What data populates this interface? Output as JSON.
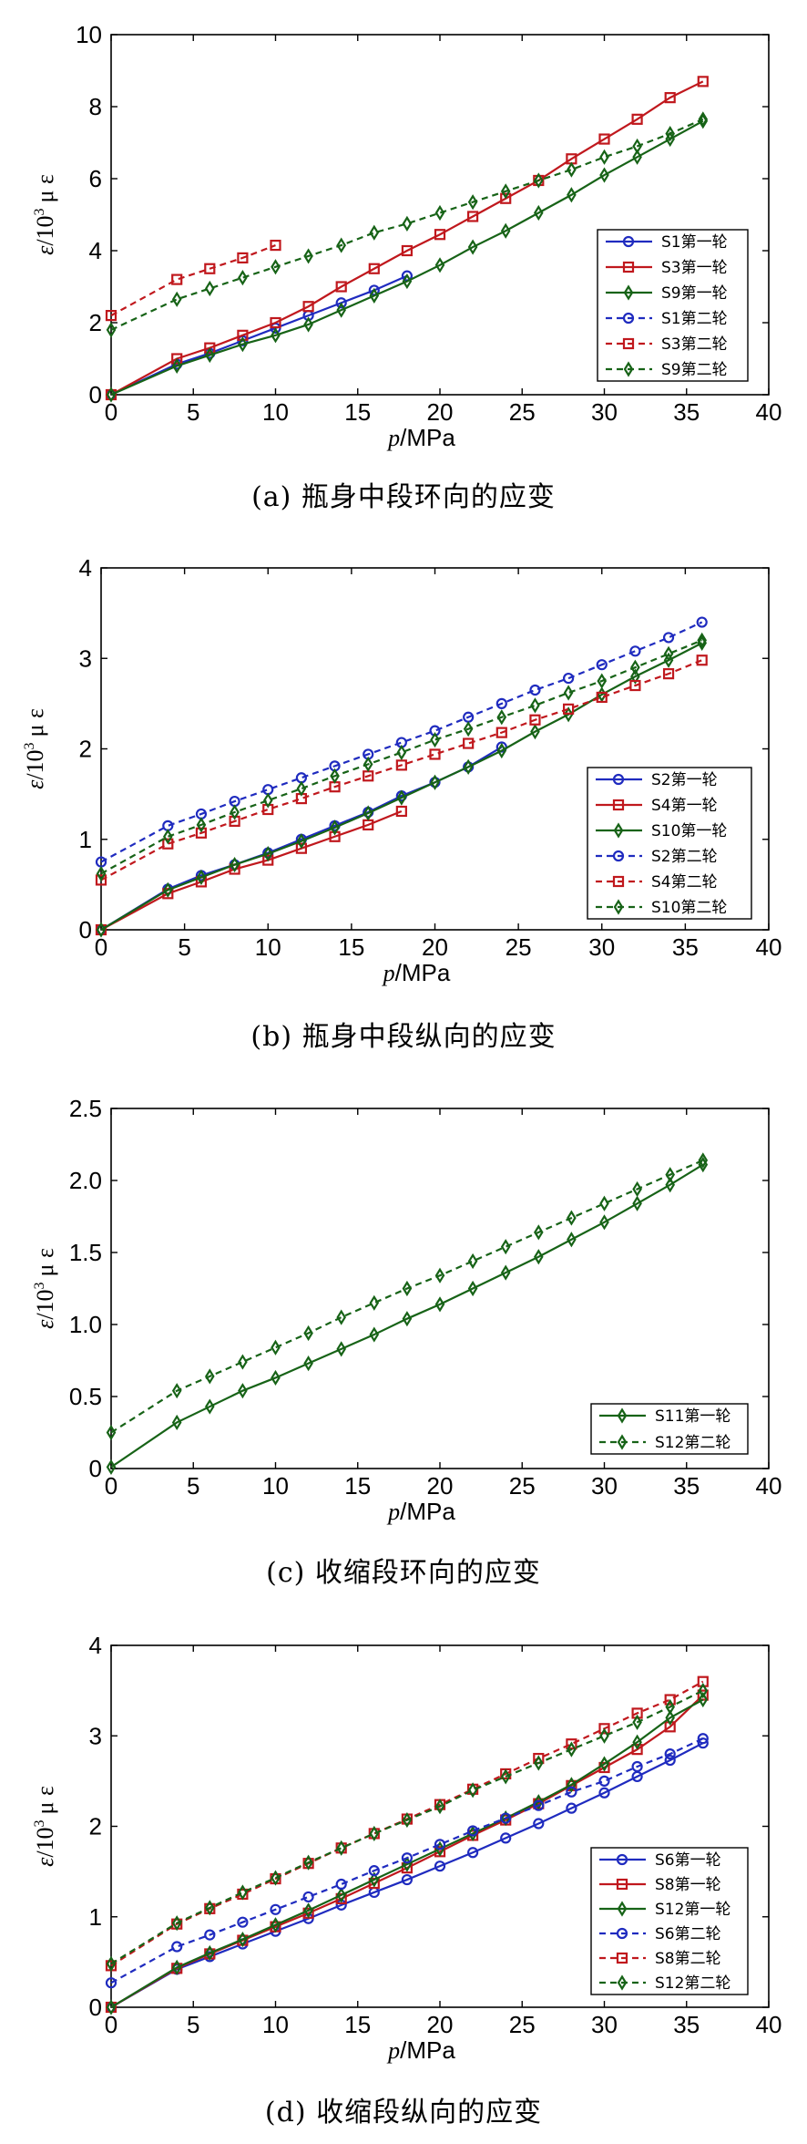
{
  "chart_data": [
    {
      "type": "line",
      "caption": "(a)  瓶身中段环向的应变",
      "xlabel_italic": "p",
      "xlabel_unit": "/MPa",
      "ylabel_italic": "ε",
      "ylabel_unit": "/10",
      "ylabel_exp": "3",
      "ylabel_tail": "μ ε",
      "xlim": [
        0,
        40
      ],
      "ylim": [
        0,
        10
      ],
      "xticks": [
        0,
        5,
        10,
        15,
        20,
        25,
        30,
        35,
        40
      ],
      "yticks": [
        0,
        2,
        4,
        6,
        8,
        10
      ],
      "legend_placement": "lower-right",
      "series": [
        {
          "name": "S1第一轮",
          "color": "#1f2bbf",
          "marker": "circle",
          "dashed": false,
          "x": [
            0,
            4,
            6,
            8,
            10,
            12,
            14,
            16,
            18
          ],
          "y": [
            0,
            0.85,
            1.15,
            1.5,
            1.85,
            2.2,
            2.55,
            2.9,
            3.3
          ]
        },
        {
          "name": "S3第一轮",
          "color": "#c0181d",
          "marker": "square",
          "dashed": false,
          "x": [
            0,
            4,
            6,
            8,
            10,
            12,
            14,
            16,
            18,
            20,
            22,
            24,
            26,
            28,
            30,
            32,
            34,
            36
          ],
          "y": [
            0,
            1.0,
            1.3,
            1.65,
            2.0,
            2.45,
            3.0,
            3.5,
            4.0,
            4.45,
            4.95,
            5.45,
            5.95,
            6.55,
            7.1,
            7.65,
            8.25,
            8.7
          ]
        },
        {
          "name": "S9第一轮",
          "color": "#176317",
          "marker": "diamond",
          "dashed": false,
          "x": [
            0,
            4,
            6,
            8,
            10,
            12,
            14,
            16,
            18,
            20,
            22,
            24,
            26,
            28,
            30,
            32,
            34,
            36
          ],
          "y": [
            0,
            0.8,
            1.1,
            1.4,
            1.65,
            1.95,
            2.35,
            2.75,
            3.15,
            3.6,
            4.1,
            4.55,
            5.05,
            5.55,
            6.1,
            6.6,
            7.1,
            7.6
          ]
        },
        {
          "name": "S1第二轮",
          "color": "#1f2bbf",
          "marker": "circle",
          "dashed": true,
          "x": [],
          "y": []
        },
        {
          "name": "S3第二轮",
          "color": "#c0181d",
          "marker": "square",
          "dashed": true,
          "x": [
            0,
            4,
            6,
            8,
            10
          ],
          "y": [
            2.2,
            3.2,
            3.5,
            3.8,
            4.15
          ]
        },
        {
          "name": "S9第二轮",
          "color": "#176317",
          "marker": "diamond",
          "dashed": true,
          "x": [
            0,
            4,
            6,
            8,
            10,
            12,
            14,
            16,
            18,
            20,
            22,
            24,
            26,
            28,
            30,
            32,
            34,
            36
          ],
          "y": [
            1.8,
            2.65,
            2.95,
            3.25,
            3.55,
            3.85,
            4.15,
            4.5,
            4.75,
            5.05,
            5.35,
            5.65,
            5.95,
            6.25,
            6.6,
            6.9,
            7.25,
            7.65
          ]
        }
      ]
    },
    {
      "type": "line",
      "caption": "(b)  瓶身中段纵向的应变",
      "xlabel_italic": "p",
      "xlabel_unit": "/MPa",
      "ylabel_italic": "ε",
      "ylabel_unit": "/10",
      "ylabel_exp": "3",
      "ylabel_tail": "μ ε",
      "xlim": [
        0,
        40
      ],
      "ylim": [
        0,
        4
      ],
      "xticks": [
        0,
        5,
        10,
        15,
        20,
        25,
        30,
        35,
        40
      ],
      "yticks": [
        0,
        1,
        2,
        3,
        4
      ],
      "legend_placement": "lower-right",
      "series": [
        {
          "name": "S2第一轮",
          "color": "#1f2bbf",
          "marker": "circle",
          "dashed": false,
          "x": [
            0,
            4,
            6,
            8,
            10,
            12,
            14,
            16,
            18,
            20,
            22,
            24
          ],
          "y": [
            0,
            0.45,
            0.6,
            0.72,
            0.85,
            1.0,
            1.15,
            1.3,
            1.48,
            1.63,
            1.8,
            2.02
          ]
        },
        {
          "name": "S4第一轮",
          "color": "#c0181d",
          "marker": "square",
          "dashed": false,
          "x": [
            0,
            4,
            6,
            8,
            10,
            12,
            14,
            16,
            18
          ],
          "y": [
            0,
            0.4,
            0.53,
            0.67,
            0.77,
            0.9,
            1.03,
            1.16,
            1.31
          ]
        },
        {
          "name": "S10第一轮",
          "color": "#176317",
          "marker": "diamond",
          "dashed": false,
          "x": [
            0,
            4,
            6,
            8,
            10,
            12,
            14,
            16,
            18,
            20,
            22,
            24,
            26,
            28,
            30,
            32,
            34,
            36
          ],
          "y": [
            0,
            0.44,
            0.58,
            0.72,
            0.84,
            0.98,
            1.13,
            1.29,
            1.46,
            1.63,
            1.8,
            1.98,
            2.19,
            2.38,
            2.6,
            2.8,
            2.98,
            3.17
          ]
        },
        {
          "name": "S2第二轮",
          "color": "#1f2bbf",
          "marker": "circle",
          "dashed": true,
          "x": [
            0,
            4,
            6,
            8,
            10,
            12,
            14,
            16,
            18,
            20,
            22,
            24,
            26,
            28,
            30,
            32,
            34,
            36
          ],
          "y": [
            0.75,
            1.15,
            1.28,
            1.42,
            1.55,
            1.68,
            1.81,
            1.94,
            2.07,
            2.2,
            2.35,
            2.5,
            2.65,
            2.78,
            2.93,
            3.08,
            3.23,
            3.4
          ]
        },
        {
          "name": "S4第二轮",
          "color": "#c0181d",
          "marker": "square",
          "dashed": true,
          "x": [
            0,
            4,
            6,
            8,
            10,
            12,
            14,
            16,
            18,
            20,
            22,
            24,
            26,
            28,
            30,
            32,
            34,
            36
          ],
          "y": [
            0.55,
            0.95,
            1.07,
            1.2,
            1.33,
            1.45,
            1.58,
            1.7,
            1.82,
            1.94,
            2.06,
            2.18,
            2.32,
            2.44,
            2.57,
            2.7,
            2.83,
            2.98
          ]
        },
        {
          "name": "S10第二轮",
          "color": "#176317",
          "marker": "diamond",
          "dashed": true,
          "x": [
            0,
            4,
            6,
            8,
            10,
            12,
            14,
            16,
            18,
            20,
            22,
            24,
            26,
            28,
            30,
            32,
            34,
            36
          ],
          "y": [
            0.62,
            1.03,
            1.16,
            1.3,
            1.43,
            1.56,
            1.7,
            1.83,
            1.96,
            2.1,
            2.22,
            2.35,
            2.48,
            2.62,
            2.75,
            2.9,
            3.05,
            3.2
          ]
        }
      ]
    },
    {
      "type": "line",
      "caption": "(c)  收缩段环向的应变",
      "xlabel_italic": "p",
      "xlabel_unit": "/MPa",
      "ylabel_italic": "ε",
      "ylabel_unit": "/10",
      "ylabel_exp": "3",
      "ylabel_tail": "μ ε",
      "xlim": [
        0,
        40
      ],
      "ylim": [
        0,
        2.5
      ],
      "xticks": [
        0,
        5,
        10,
        15,
        20,
        25,
        30,
        35,
        40
      ],
      "yticks": [
        0,
        0.5,
        1.0,
        1.5,
        2.0,
        2.5
      ],
      "ytick_labels": [
        "0",
        "0.5",
        "1.0",
        "1.5",
        "2.0",
        "2.5"
      ],
      "legend_placement": "lower-right",
      "series": [
        {
          "name": "S11第一轮",
          "color": "#176317",
          "marker": "diamond",
          "dashed": false,
          "x": [
            0,
            4,
            6,
            8,
            10,
            12,
            14,
            16,
            18,
            20,
            22,
            24,
            26,
            28,
            30,
            32,
            34,
            36
          ],
          "y": [
            0.01,
            0.32,
            0.43,
            0.54,
            0.63,
            0.73,
            0.83,
            0.93,
            1.04,
            1.14,
            1.25,
            1.36,
            1.47,
            1.59,
            1.71,
            1.84,
            1.97,
            2.11
          ]
        },
        {
          "name": "S12第二轮",
          "color": "#176317",
          "marker": "diamond",
          "dashed": true,
          "x": [
            0,
            4,
            6,
            8,
            10,
            12,
            14,
            16,
            18,
            20,
            22,
            24,
            26,
            28,
            30,
            32,
            34,
            36
          ],
          "y": [
            0.25,
            0.54,
            0.64,
            0.74,
            0.84,
            0.94,
            1.05,
            1.15,
            1.25,
            1.34,
            1.44,
            1.54,
            1.64,
            1.74,
            1.84,
            1.94,
            2.04,
            2.14
          ]
        }
      ]
    },
    {
      "type": "line",
      "caption": "(d)  收缩段纵向的应变",
      "xlabel_italic": "p",
      "xlabel_unit": "/MPa",
      "ylabel_italic": "ε",
      "ylabel_unit": "/10",
      "ylabel_exp": "3",
      "ylabel_tail": "μ ε",
      "xlim": [
        0,
        40
      ],
      "ylim": [
        0,
        4
      ],
      "xticks": [
        0,
        5,
        10,
        15,
        20,
        25,
        30,
        35,
        40
      ],
      "yticks": [
        0,
        1,
        2,
        3,
        4
      ],
      "legend_placement": "lower-right",
      "series": [
        {
          "name": "S6第一轮",
          "color": "#1f2bbf",
          "marker": "circle",
          "dashed": false,
          "x": [
            0,
            4,
            6,
            8,
            10,
            12,
            14,
            16,
            18,
            20,
            22,
            24,
            26,
            28,
            30,
            32,
            34,
            36
          ],
          "y": [
            0,
            0.42,
            0.56,
            0.7,
            0.84,
            0.98,
            1.13,
            1.27,
            1.41,
            1.56,
            1.71,
            1.87,
            2.03,
            2.2,
            2.37,
            2.55,
            2.73,
            2.92
          ]
        },
        {
          "name": "S8第一轮",
          "color": "#c0181d",
          "marker": "square",
          "dashed": false,
          "x": [
            0,
            4,
            6,
            8,
            10,
            12,
            14,
            16,
            18,
            20,
            22,
            24,
            26,
            28,
            30,
            32,
            34,
            36
          ],
          "y": [
            0,
            0.43,
            0.59,
            0.74,
            0.89,
            1.04,
            1.2,
            1.37,
            1.54,
            1.72,
            1.9,
            2.07,
            2.25,
            2.45,
            2.65,
            2.85,
            3.1,
            3.45
          ]
        },
        {
          "name": "S12第一轮",
          "color": "#176317",
          "marker": "diamond",
          "dashed": false,
          "x": [
            0,
            4,
            6,
            8,
            10,
            12,
            14,
            16,
            18,
            20,
            22,
            24,
            26,
            28,
            30,
            32,
            34,
            36
          ],
          "y": [
            0,
            0.44,
            0.6,
            0.75,
            0.91,
            1.07,
            1.24,
            1.41,
            1.58,
            1.75,
            1.92,
            2.09,
            2.27,
            2.46,
            2.69,
            2.93,
            3.2,
            3.4
          ]
        },
        {
          "name": "S6第二轮",
          "color": "#1f2bbf",
          "marker": "circle",
          "dashed": true,
          "x": [
            0,
            4,
            6,
            8,
            10,
            12,
            14,
            16,
            18,
            20,
            22,
            24,
            26,
            28,
            30,
            32,
            34,
            36
          ],
          "y": [
            0.27,
            0.67,
            0.8,
            0.94,
            1.08,
            1.22,
            1.36,
            1.51,
            1.65,
            1.8,
            1.95,
            2.09,
            2.23,
            2.38,
            2.5,
            2.66,
            2.8,
            2.97
          ]
        },
        {
          "name": "S8第二轮",
          "color": "#c0181d",
          "marker": "square",
          "dashed": true,
          "x": [
            0,
            4,
            6,
            8,
            10,
            12,
            14,
            16,
            18,
            20,
            22,
            24,
            26,
            28,
            30,
            32,
            34,
            36
          ],
          "y": [
            0.46,
            0.92,
            1.09,
            1.25,
            1.42,
            1.59,
            1.76,
            1.92,
            2.08,
            2.24,
            2.41,
            2.58,
            2.75,
            2.91,
            3.08,
            3.25,
            3.4,
            3.6
          ]
        },
        {
          "name": "S12第二轮",
          "color": "#176317",
          "marker": "diamond",
          "dashed": true,
          "x": [
            0,
            4,
            6,
            8,
            10,
            12,
            14,
            16,
            18,
            20,
            22,
            24,
            26,
            28,
            30,
            32,
            34,
            36
          ],
          "y": [
            0.48,
            0.93,
            1.1,
            1.27,
            1.43,
            1.6,
            1.76,
            1.92,
            2.07,
            2.22,
            2.4,
            2.55,
            2.7,
            2.85,
            3.0,
            3.15,
            3.32,
            3.5
          ]
        }
      ]
    }
  ]
}
